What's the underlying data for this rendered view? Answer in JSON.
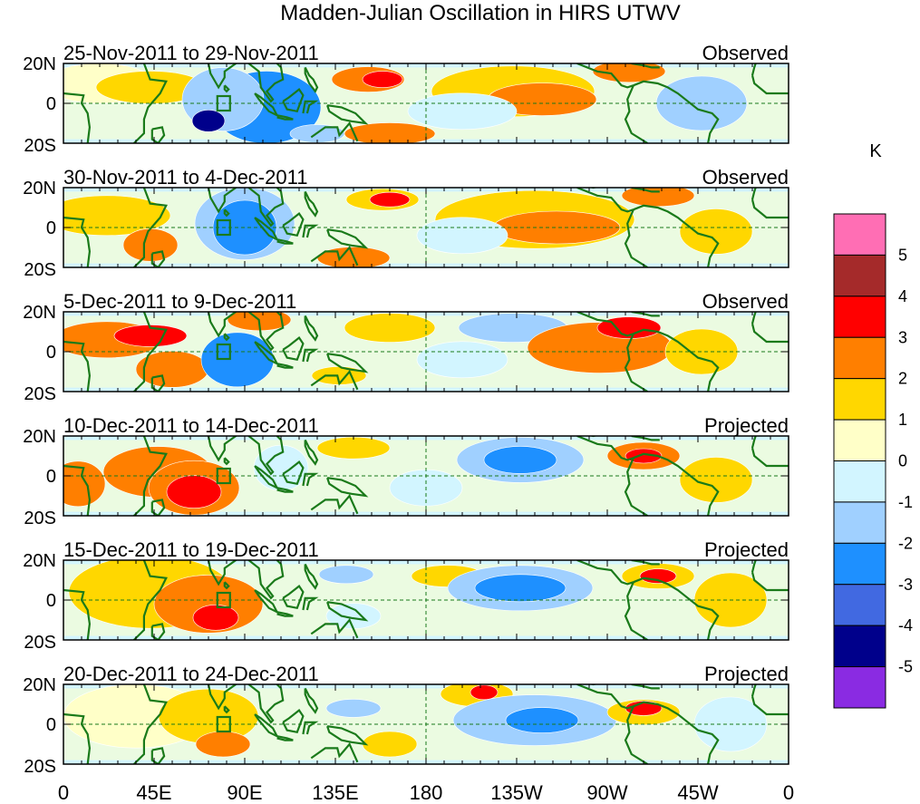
{
  "title": "Madden-Julian Oscillation in HIRS UTWV",
  "panels": [
    {
      "date_range": "25-Nov-2011 to 29-Nov-2011",
      "status": "Observed"
    },
    {
      "date_range": "30-Nov-2011 to 4-Dec-2011",
      "status": "Observed"
    },
    {
      "date_range": "5-Dec-2011 to 9-Dec-2011",
      "status": "Observed"
    },
    {
      "date_range": "10-Dec-2011 to 14-Dec-2011",
      "status": "Projected"
    },
    {
      "date_range": "15-Dec-2011 to 19-Dec-2011",
      "status": "Projected"
    },
    {
      "date_range": "20-Dec-2011 to 24-Dec-2011",
      "status": "Projected"
    }
  ],
  "lat_ticks": [
    "20N",
    "0",
    "20S"
  ],
  "lon_ticks": [
    "0",
    "45E",
    "90E",
    "135E",
    "180",
    "135W",
    "90W",
    "45W",
    "0"
  ],
  "colorbar": {
    "unit": "K",
    "labels": [
      "5",
      "4",
      "3",
      "2",
      "1",
      "0",
      "-1",
      "-2",
      "-3",
      "-4",
      "-5"
    ],
    "colors": [
      "#ff6eb4",
      "#a52a2a",
      "#ff0000",
      "#ff7f00",
      "#ffd700",
      "#ffffc8",
      "#d2f5ff",
      "#a0d0ff",
      "#1e90ff",
      "#4169e1",
      "#00008b",
      "#8a2be2"
    ]
  },
  "map": {
    "land_outline_color": "#1a7a1a",
    "guide_line_color": "#1a7a1a",
    "box_color": "#1a7a1a"
  }
}
